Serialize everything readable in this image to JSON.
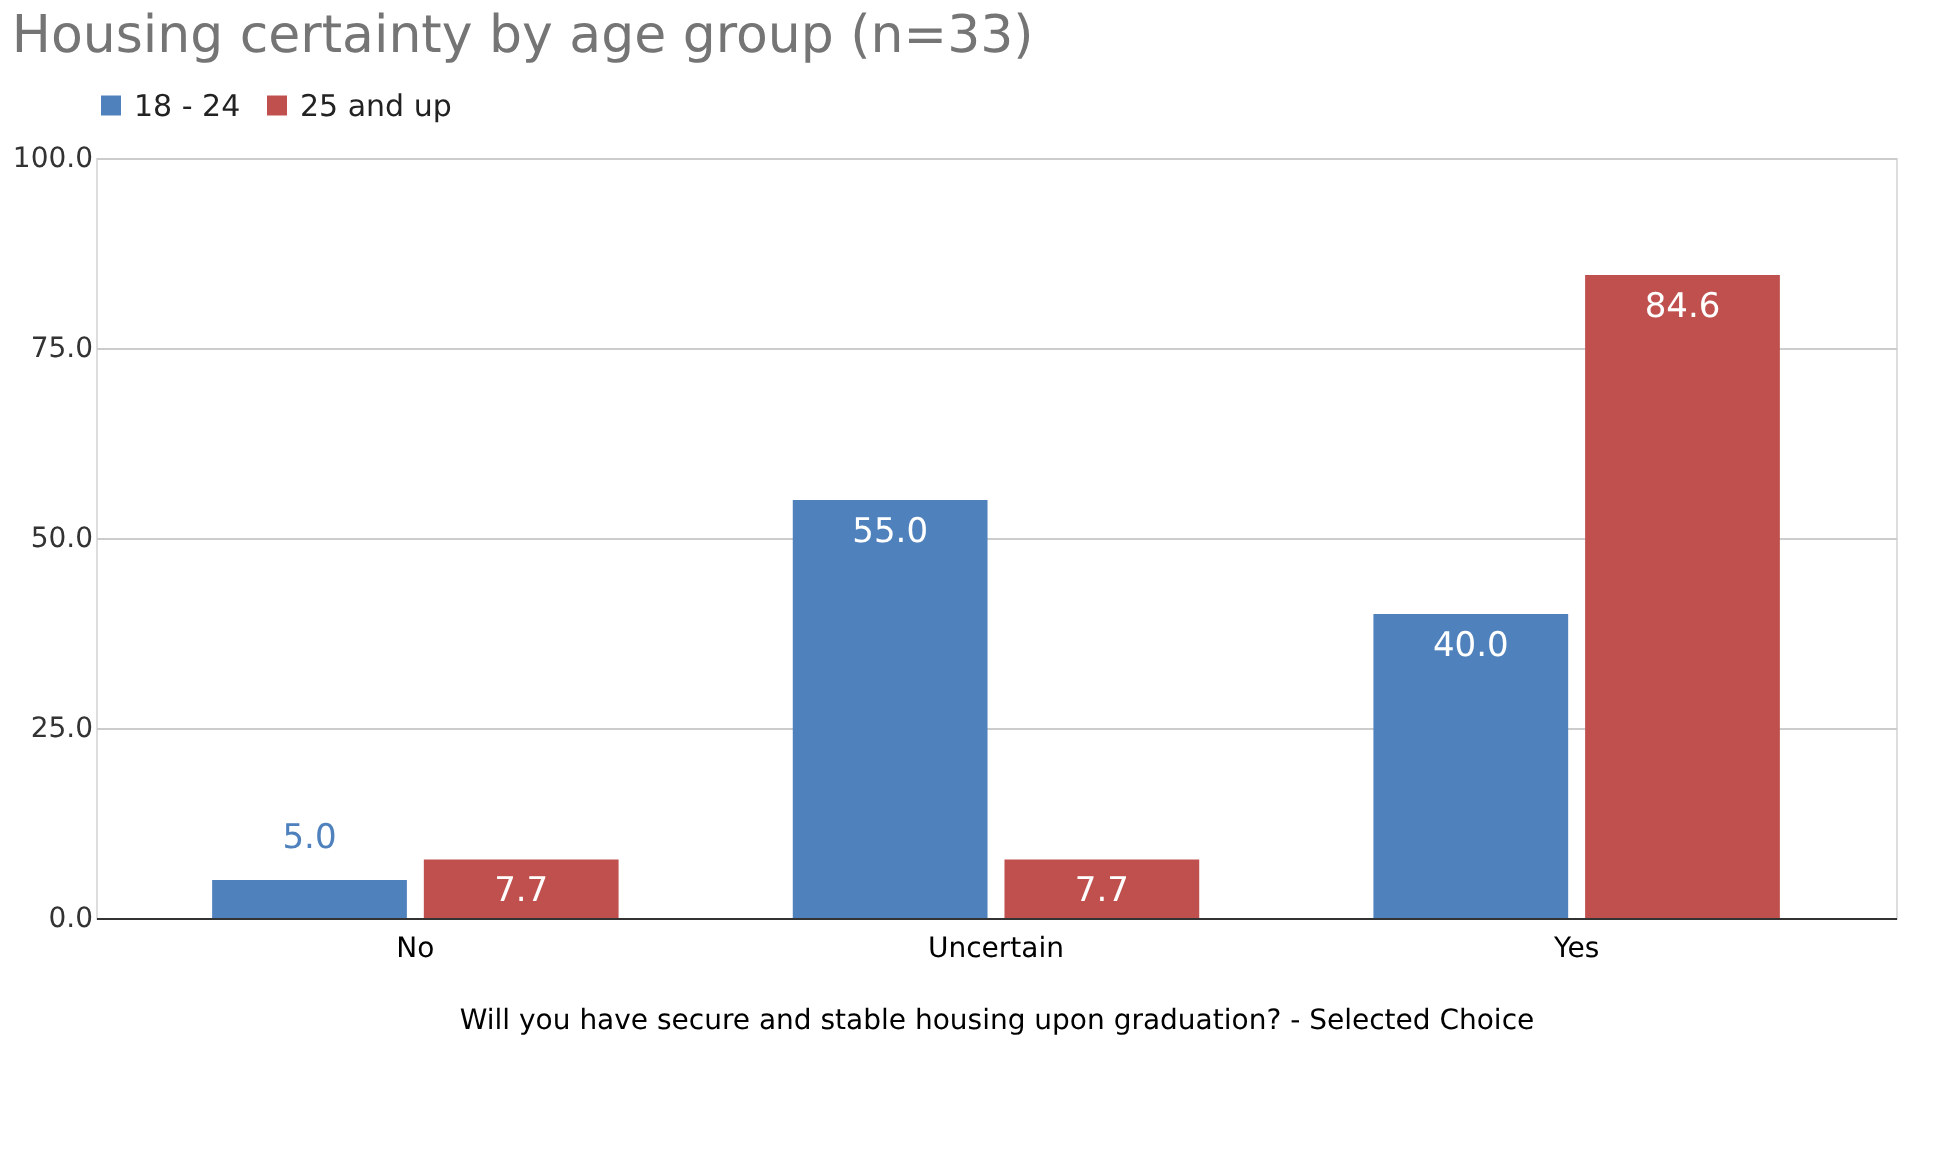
{
  "chart_data": {
    "type": "bar",
    "title": "Housing certainty by age group (n=33)",
    "xlabel": "Will you have secure and stable housing upon graduation? - Selected Choice",
    "categories": [
      "No",
      "Uncertain",
      "Yes"
    ],
    "series": [
      {
        "name": "18 - 24",
        "color": "#4f81bd",
        "values": [
          5.0,
          55.0,
          40.0
        ],
        "value_labels": [
          "5.0",
          "55.0",
          "40.0"
        ]
      },
      {
        "name": "25 and up",
        "color": "#c0504d",
        "values": [
          7.7,
          7.7,
          84.6
        ],
        "value_labels": [
          "7.7",
          "7.7",
          "84.6"
        ]
      }
    ],
    "ylim": [
      0,
      100
    ],
    "yticks": [
      {
        "value": 0,
        "label": "0.0"
      },
      {
        "value": 25,
        "label": "25.0"
      },
      {
        "value": 50,
        "label": "50.0"
      },
      {
        "value": 75,
        "label": "75.0"
      },
      {
        "value": 100,
        "label": "100.0"
      }
    ],
    "grid": "y",
    "legend": "top"
  }
}
